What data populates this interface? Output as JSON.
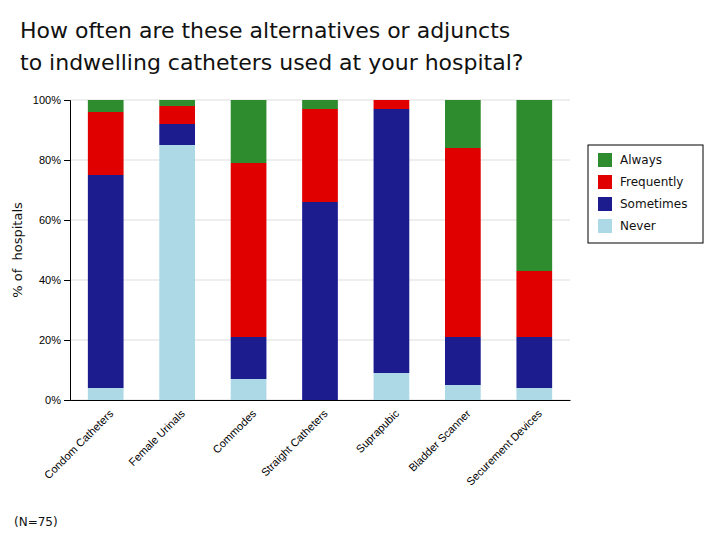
{
  "chart_data": {
    "type": "bar",
    "stacked": true,
    "title": "How often are these alternatives or adjuncts",
    "subtitle": "to indwelling catheters used at your hospital?",
    "y_label": "% of  hospitals",
    "annotations": [
      "(N=75)"
    ],
    "categories": [
      "Condom Catheters",
      "Female Urinals",
      "Commodes",
      "Straight Catheters",
      "Suprapubic",
      "Bladder Scanner",
      "Securement Devices"
    ],
    "series": [
      {
        "name": "Never",
        "color": "#add8e6",
        "values": [
          4,
          85,
          7,
          0,
          9,
          5,
          4
        ]
      },
      {
        "name": "Sometimes",
        "color": "#1c1c8f",
        "values": [
          71,
          7,
          14,
          66,
          88,
          16,
          17
        ]
      },
      {
        "name": "Frequently",
        "color": "#e00000",
        "values": [
          21,
          6,
          58,
          31,
          3,
          63,
          22
        ]
      },
      {
        "name": "Always",
        "color": "#2e8b2e",
        "values": [
          4,
          2,
          21,
          3,
          0,
          16,
          57
        ]
      }
    ],
    "ylim": [
      0,
      100
    ],
    "yticks": [
      {
        "value": 0,
        "label": "0%"
      },
      {
        "value": 20,
        "label": "20%"
      },
      {
        "value": 40,
        "label": "40%"
      },
      {
        "value": 60,
        "label": "60%"
      },
      {
        "value": 80,
        "label": "80%"
      },
      {
        "value": 100,
        "label": "100%"
      }
    ],
    "grid": true,
    "legend": "right"
  }
}
